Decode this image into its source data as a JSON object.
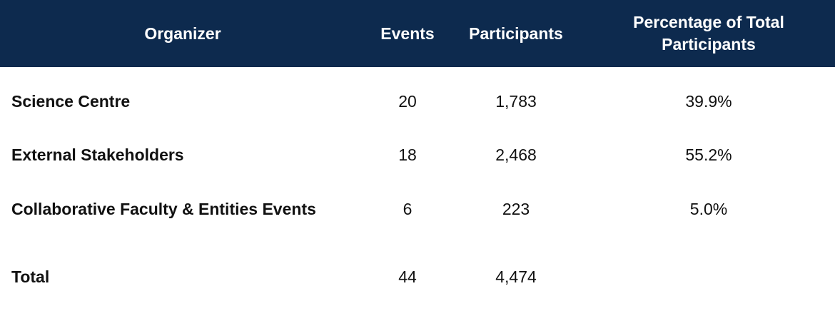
{
  "table": {
    "headers": {
      "organizer": "Organizer",
      "events": "Events",
      "participants": "Participants",
      "percentage_line1": "Percentage of Total",
      "percentage_line2": "Participants"
    },
    "rows": [
      {
        "organizer": "Science Centre",
        "events": "20",
        "participants": "1,783",
        "percentage": "39.9%"
      },
      {
        "organizer": "External Stakeholders",
        "events": "18",
        "participants": "2,468",
        "percentage": "55.2%"
      },
      {
        "organizer": "Collaborative Faculty & Entities Events",
        "events": "6",
        "participants": "223",
        "percentage": "5.0%"
      }
    ],
    "total": {
      "label": "Total",
      "events": "44",
      "participants": "4,474",
      "percentage": ""
    }
  },
  "colors": {
    "header_background": "#0d2a4e",
    "header_text": "#ffffff",
    "body_text": "#111111"
  }
}
